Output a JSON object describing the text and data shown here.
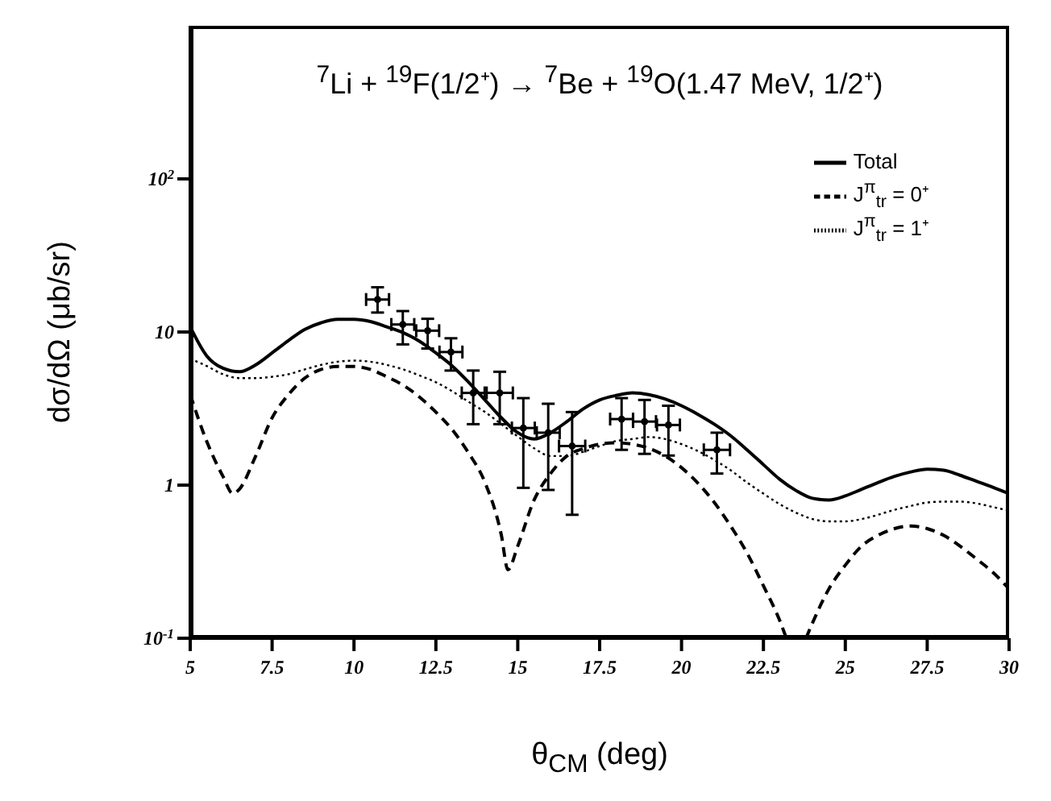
{
  "chart_data": {
    "type": "line",
    "title": "$^{7}$Li + $^{19}$F(1/2⁺) → $^{7}$Be + $^{19}$O(1.47 MeV, 1/2⁺)",
    "xlabel": "θ$_{CM}$ (deg)",
    "ylabel": "dσ/dΩ (μb/sr)",
    "xlim": [
      5,
      30
    ],
    "xticks": [
      5,
      7.5,
      10,
      12.5,
      15,
      17.5,
      20,
      22.5,
      25,
      27.5,
      30
    ],
    "ylim": [
      0.1,
      1000
    ],
    "yticks": [
      {
        "value": 0.1,
        "label": "10$^{-1}$"
      },
      1,
      10,
      {
        "value": 100,
        "label": "10$^{2}$"
      }
    ],
    "log": "y",
    "grid": false,
    "legend": "top right",
    "series": [
      {
        "name": "Total",
        "color": "#000000",
        "line_style": "solid",
        "x": [
          5,
          5.5,
          6,
          6.5,
          7,
          7.5,
          8,
          8.5,
          9,
          9.5,
          10,
          10.5,
          11,
          11.5,
          12,
          12.5,
          13,
          13.5,
          14,
          14.5,
          15,
          15.5,
          16,
          16.5,
          17,
          17.5,
          18,
          18.5,
          19,
          19.5,
          20,
          20.5,
          21,
          21.5,
          22,
          22.5,
          23,
          23.5,
          24,
          24.5,
          25,
          25.5,
          26,
          26.5,
          27,
          27.5,
          28,
          28.5,
          29,
          29.5,
          30
        ],
        "values": [
          10.8,
          7.0,
          5.8,
          5.5,
          6.1,
          7.3,
          8.8,
          10.4,
          11.5,
          12.1,
          12.1,
          11.7,
          10.8,
          9.9,
          8.7,
          7.3,
          6.0,
          4.7,
          3.6,
          2.75,
          2.2,
          2.0,
          2.2,
          2.6,
          3.15,
          3.6,
          3.85,
          4.0,
          3.9,
          3.65,
          3.3,
          2.9,
          2.5,
          2.1,
          1.7,
          1.36,
          1.09,
          0.92,
          0.82,
          0.8,
          0.85,
          0.94,
          1.04,
          1.14,
          1.22,
          1.27,
          1.25,
          1.16,
          1.06,
          0.97,
          0.88
        ]
      },
      {
        "name": "J$^{π}$$_{tr}$ = 0⁺",
        "color": "#000000",
        "line_style": "dashed",
        "x": [
          5,
          5.5,
          6,
          6.3,
          6.5,
          7,
          7.5,
          8,
          8.5,
          9,
          9.5,
          10,
          10.5,
          11,
          11.5,
          12,
          12.5,
          13,
          13.5,
          14,
          14.5,
          14.7,
          15,
          15.5,
          16,
          16.5,
          17,
          17.5,
          18,
          18.5,
          19,
          19.5,
          20,
          20.5,
          21,
          21.5,
          22,
          22.5,
          23,
          23.2,
          23.5,
          23.8,
          24,
          24.5,
          25,
          25.5,
          26,
          26.5,
          27,
          27.5,
          28,
          28.5,
          29,
          29.5,
          30
        ],
        "values": [
          3.9,
          1.94,
          1.14,
          0.88,
          0.94,
          1.55,
          2.75,
          3.9,
          5.0,
          5.7,
          5.95,
          5.95,
          5.7,
          5.1,
          4.5,
          3.76,
          3.0,
          2.3,
          1.62,
          1.04,
          0.47,
          0.28,
          0.4,
          0.8,
          1.19,
          1.55,
          1.73,
          1.85,
          1.89,
          1.85,
          1.74,
          1.55,
          1.3,
          1.03,
          0.77,
          0.54,
          0.36,
          0.22,
          0.13,
          0.1,
          null,
          0.1,
          0.126,
          0.21,
          0.3,
          0.4,
          0.47,
          0.52,
          0.54,
          0.52,
          0.47,
          0.4,
          0.33,
          0.27,
          0.21
        ]
      },
      {
        "name": "J$^{π}$$_{tr}$ = 1⁺",
        "color": "#000000",
        "line_style": "dotted",
        "x": [
          5,
          5.5,
          6,
          6.5,
          7,
          7.5,
          8,
          8.5,
          9,
          9.5,
          10,
          10.5,
          11,
          11.5,
          12,
          12.5,
          13,
          13.5,
          14,
          14.5,
          15,
          15.5,
          16,
          16.5,
          17,
          17.5,
          18,
          18.5,
          19,
          19.5,
          20,
          20.5,
          21,
          21.5,
          22,
          22.5,
          23,
          23.5,
          24,
          24.5,
          25,
          25.5,
          26,
          26.5,
          27,
          27.5,
          28,
          28.5,
          29,
          29.5,
          30
        ],
        "values": [
          6.7,
          6.0,
          5.3,
          5.0,
          5.0,
          5.1,
          5.3,
          5.7,
          6.1,
          6.4,
          6.5,
          6.4,
          6.1,
          5.7,
          5.2,
          4.7,
          4.1,
          3.5,
          3.0,
          2.5,
          2.08,
          1.74,
          1.55,
          1.55,
          1.65,
          1.8,
          1.94,
          2.0,
          2.06,
          2.0,
          1.85,
          1.67,
          1.46,
          1.25,
          1.04,
          0.88,
          0.75,
          0.66,
          0.6,
          0.58,
          0.58,
          0.6,
          0.64,
          0.69,
          0.73,
          0.77,
          0.78,
          0.78,
          0.76,
          0.72,
          0.68
        ]
      },
      {
        "type": "scatter",
        "color": "#000000",
        "marker": "circle",
        "x": [
          10.72,
          11.49,
          12.25,
          12.96,
          13.64,
          14.45,
          15.17,
          15.93,
          16.66,
          18.17,
          18.87,
          19.6,
          21.08
        ],
        "values": [
          16.3,
          11.2,
          10.2,
          7.4,
          4.0,
          4.0,
          2.36,
          2.2,
          1.8,
          2.7,
          2.6,
          2.47,
          1.7
        ],
        "errors": [
          [
            13.4,
            19.6
          ],
          [
            8.3,
            13.7
          ],
          [
            7.8,
            12.2
          ],
          [
            5.6,
            9.1
          ],
          [
            2.5,
            5.6
          ],
          [
            2.5,
            5.5
          ],
          [
            0.96,
            3.7
          ],
          [
            0.93,
            3.4
          ],
          [
            0.64,
            3.0
          ],
          [
            1.7,
            3.7
          ],
          [
            1.6,
            3.6
          ],
          [
            1.56,
            3.3
          ],
          [
            1.19,
            2.2
          ]
        ],
        "xerrors": [
          0.35,
          0.35,
          0.35,
          0.35,
          0.35,
          0.4,
          0.35,
          0.35,
          0.4,
          0.35,
          0.35,
          0.35,
          0.4
        ]
      }
    ]
  }
}
